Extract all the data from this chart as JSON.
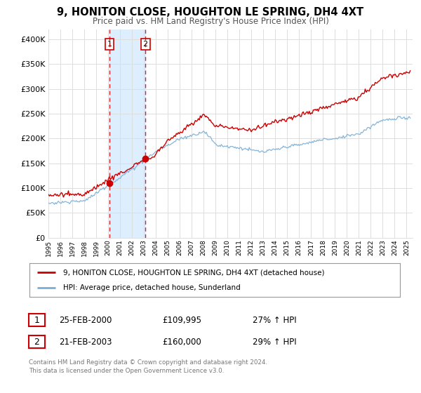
{
  "title": "9, HONITON CLOSE, HOUGHTON LE SPRING, DH4 4XT",
  "subtitle": "Price paid vs. HM Land Registry's House Price Index (HPI)",
  "legend_line1": "9, HONITON CLOSE, HOUGHTON LE SPRING, DH4 4XT (detached house)",
  "legend_line2": "HPI: Average price, detached house, Sunderland",
  "red_color": "#cc0000",
  "blue_color": "#7aadd4",
  "transaction1_date": "25-FEB-2000",
  "transaction1_price": "£109,995",
  "transaction1_hpi": "27% ↑ HPI",
  "transaction1_year": 2000.12,
  "transaction1_value": 109995,
  "transaction2_date": "21-FEB-2003",
  "transaction2_price": "£160,000",
  "transaction2_hpi": "29% ↑ HPI",
  "transaction2_year": 2003.12,
  "transaction2_value": 160000,
  "copyright_text": "Contains HM Land Registry data © Crown copyright and database right 2024.\nThis data is licensed under the Open Government Licence v3.0.",
  "ylim": [
    0,
    420000
  ],
  "xlim_start": 1995.0,
  "xlim_end": 2025.5,
  "background_color": "#ffffff",
  "grid_color": "#dddddd",
  "shaded_region_color": "#ddeeff"
}
